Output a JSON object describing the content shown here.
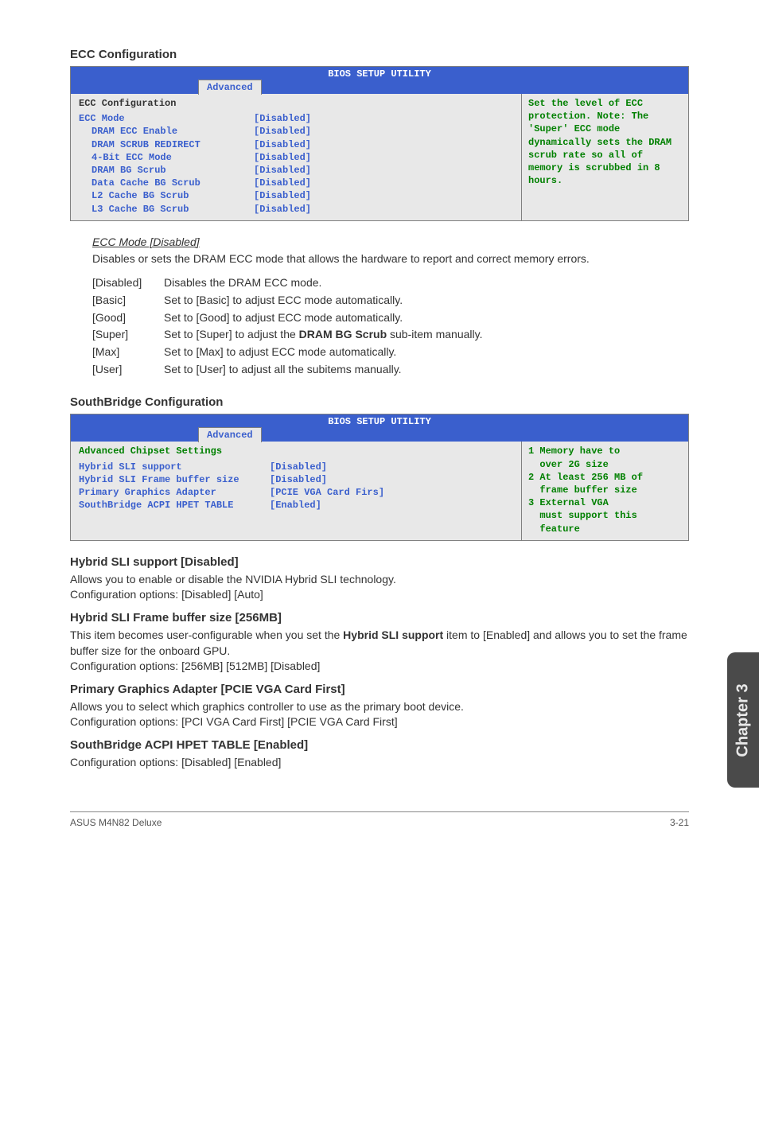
{
  "colors": {
    "bios_header_bg": "#3a5fcd",
    "bios_body_bg": "#e8e8e8",
    "bios_text_blue": "#3a5fcd",
    "bios_text_green": "#008000",
    "border_gray": "#808080",
    "page_text": "#333333",
    "sidetab_bg": "#4a4a4a"
  },
  "ecc": {
    "section_title": "ECC Configuration",
    "bios_title": "BIOS SETUP UTILITY",
    "tab": "Advanced",
    "panel_heading": "ECC Configuration",
    "rows": [
      {
        "label": "ECC Mode",
        "value": "[Disabled]",
        "indent": false
      },
      {
        "label": "DRAM ECC Enable",
        "value": "[Disabled]",
        "indent": true
      },
      {
        "label": "DRAM SCRUB REDIRECT",
        "value": "[Disabled]",
        "indent": true
      },
      {
        "label": "4-Bit ECC Mode",
        "value": "[Disabled]",
        "indent": true
      },
      {
        "label": "DRAM BG Scrub",
        "value": "[Disabled]",
        "indent": true
      },
      {
        "label": "Data Cache BG Scrub",
        "value": "[Disabled]",
        "indent": true
      },
      {
        "label": "L2 Cache BG Scrub",
        "value": "[Disabled]",
        "indent": true
      },
      {
        "label": "L3 Cache BG Scrub",
        "value": "[Disabled]",
        "indent": true
      }
    ],
    "help": "Set the level of ECC protection. Note: The 'Super' ECC mode dynamically sets the DRAM scrub rate so all of memory is scrubbed in 8 hours.",
    "mode_heading": "ECC Mode [Disabled]",
    "mode_desc": "Disables or sets the DRAM ECC mode that allows the hardware to report and correct memory errors.",
    "options": [
      {
        "k": "[Disabled]",
        "v": "Disables the DRAM ECC mode."
      },
      {
        "k": "[Basic]",
        "v": "Set to [Basic] to adjust ECC mode automatically."
      },
      {
        "k": "[Good]",
        "v": "Set to [Good] to adjust ECC mode automatically."
      },
      {
        "k": "[Super]",
        "v_pre": "Set to [Super] to adjust the ",
        "v_bold": "DRAM BG Scrub",
        "v_post": " sub-item manually."
      },
      {
        "k": "[Max]",
        "v": "Set to [Max] to adjust ECC mode automatically."
      },
      {
        "k": "[User]",
        "v": "Set to [User] to adjust all the subitems manually."
      }
    ]
  },
  "sb": {
    "section_title": "SouthBridge Configuration",
    "bios_title": "BIOS SETUP UTILITY",
    "tab": "Advanced",
    "panel_heading": "Advanced Chipset Settings",
    "rows": [
      {
        "label": "Hybrid SLI support",
        "value": "[Disabled]"
      },
      {
        "label": "Hybrid SLI Frame buffer size",
        "value": "[Disabled]"
      },
      {
        "label": "Primary Graphics Adapter",
        "value": "[PCIE VGA Card Firs]"
      },
      {
        "label": "SouthBridge ACPI HPET TABLE",
        "value": "[Enabled]"
      }
    ],
    "help_lines": [
      "1 Memory have to",
      "  over 2G size",
      "2 At least 256 MB of",
      "  frame buffer size",
      "3 External VGA",
      "  must support this",
      "  feature"
    ]
  },
  "h1": {
    "title": "Hybrid SLI support [Disabled]",
    "p1": "Allows you to enable or disable the NVIDIA Hybrid SLI technology.",
    "p2": "Configuration options: [Disabled] [Auto]"
  },
  "h2": {
    "title": "Hybrid SLI Frame buffer size [256MB]",
    "p1a": "This item becomes user-configurable when you set the ",
    "p1b": "Hybrid SLI support",
    "p1c": " item to [Enabled] and allows you to set the frame buffer size for the onboard GPU.",
    "p2": "Configuration options: [256MB] [512MB] [Disabled]"
  },
  "h3": {
    "title": "Primary Graphics Adapter [PCIE VGA Card First]",
    "p1": "Allows you to select which graphics controller to use as the primary boot device.",
    "p2": "Configuration options: [PCI VGA Card First] [PCIE VGA Card First]"
  },
  "h4": {
    "title": "SouthBridge ACPI HPET TABLE [Enabled]",
    "p1": "Configuration options: [Disabled] [Enabled]"
  },
  "sidetab": "Chapter 3",
  "footer": {
    "left": "ASUS M4N82 Deluxe",
    "right": "3-21"
  }
}
